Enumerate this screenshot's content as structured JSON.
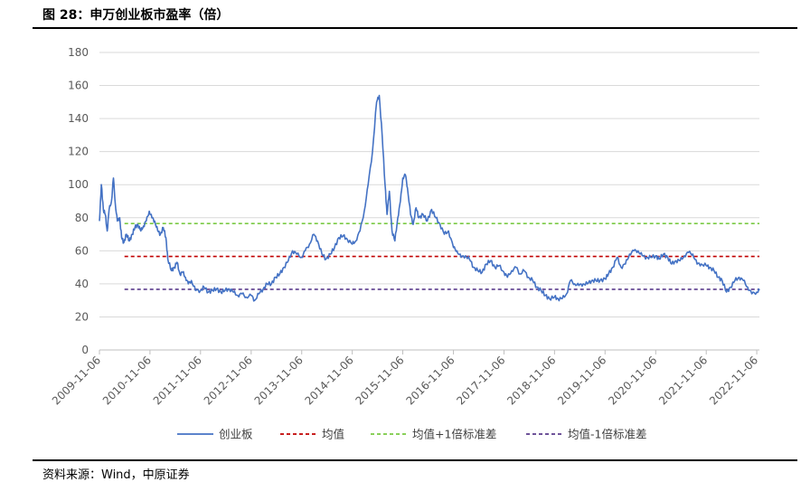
{
  "figure": {
    "title": "图 28：申万创业板市盈率（倍）",
    "source": "资料来源：Wind，中原证券"
  },
  "chart_data": {
    "type": "line",
    "title": "",
    "xlabel": "",
    "ylabel": "",
    "ylim": [
      0,
      180
    ],
    "y_ticks": [
      0,
      20,
      40,
      60,
      80,
      100,
      120,
      140,
      160,
      180
    ],
    "x_ticks": [
      "2009-11-06",
      "2010-11-06",
      "2011-11-06",
      "2012-11-06",
      "2013-11-06",
      "2014-11-06",
      "2015-11-06",
      "2016-11-06",
      "2017-11-06",
      "2018-11-06",
      "2019-11-06",
      "2020-11-06",
      "2021-11-06",
      "2022-11-06"
    ],
    "grid": "horizontal",
    "legend_position": "bottom",
    "series": [
      {
        "name": "创业板",
        "color": "#4472C4",
        "points": [
          [
            "2009-11-06",
            78
          ],
          [
            "2009-11-20",
            100
          ],
          [
            "2009-12-04",
            85
          ],
          [
            "2009-12-18",
            82
          ],
          [
            "2010-01-01",
            72
          ],
          [
            "2010-01-15",
            85
          ],
          [
            "2010-02-01",
            90
          ],
          [
            "2010-02-15",
            104
          ],
          [
            "2010-03-01",
            88
          ],
          [
            "2010-03-15",
            78
          ],
          [
            "2010-04-01",
            80
          ],
          [
            "2010-04-15",
            68
          ],
          [
            "2010-05-01",
            65
          ],
          [
            "2010-05-20",
            70
          ],
          [
            "2010-06-10",
            66
          ],
          [
            "2010-07-01",
            70
          ],
          [
            "2010-07-20",
            74
          ],
          [
            "2010-08-10",
            76
          ],
          [
            "2010-09-01",
            72
          ],
          [
            "2010-09-20",
            75
          ],
          [
            "2010-10-10",
            78
          ],
          [
            "2010-11-01",
            84
          ],
          [
            "2010-11-20",
            80
          ],
          [
            "2010-12-10",
            78
          ],
          [
            "2011-01-01",
            72
          ],
          [
            "2011-01-20",
            70
          ],
          [
            "2011-02-10",
            74
          ],
          [
            "2011-03-01",
            68
          ],
          [
            "2011-03-15",
            55
          ],
          [
            "2011-04-10",
            48
          ],
          [
            "2011-05-01",
            50
          ],
          [
            "2011-05-20",
            53
          ],
          [
            "2011-06-10",
            46
          ],
          [
            "2011-07-01",
            47
          ],
          [
            "2011-07-20",
            44
          ],
          [
            "2011-08-10",
            40
          ],
          [
            "2011-09-01",
            42
          ],
          [
            "2011-10-01",
            36
          ],
          [
            "2011-11-06",
            36
          ],
          [
            "2011-12-01",
            38
          ],
          [
            "2012-01-01",
            35
          ],
          [
            "2012-02-01",
            36
          ],
          [
            "2012-03-01",
            37
          ],
          [
            "2012-04-01",
            35
          ],
          [
            "2012-05-01",
            36
          ],
          [
            "2012-06-01",
            37
          ],
          [
            "2012-07-01",
            35
          ],
          [
            "2012-08-01",
            33
          ],
          [
            "2012-09-01",
            34
          ],
          [
            "2012-10-01",
            32
          ],
          [
            "2012-11-06",
            33
          ],
          [
            "2012-12-01",
            30
          ],
          [
            "2013-01-01",
            34
          ],
          [
            "2013-02-01",
            37
          ],
          [
            "2013-03-01",
            40
          ],
          [
            "2013-04-01",
            40
          ],
          [
            "2013-05-01",
            44
          ],
          [
            "2013-06-01",
            46
          ],
          [
            "2013-07-01",
            50
          ],
          [
            "2013-08-01",
            54
          ],
          [
            "2013-09-01",
            60
          ],
          [
            "2013-10-01",
            58
          ],
          [
            "2013-11-06",
            56
          ],
          [
            "2013-12-01",
            60
          ],
          [
            "2014-01-01",
            64
          ],
          [
            "2014-02-01",
            70
          ],
          [
            "2014-03-01",
            66
          ],
          [
            "2014-04-01",
            58
          ],
          [
            "2014-05-01",
            55
          ],
          [
            "2014-06-01",
            58
          ],
          [
            "2014-07-01",
            62
          ],
          [
            "2014-08-01",
            68
          ],
          [
            "2014-09-01",
            69
          ],
          [
            "2014-10-01",
            67
          ],
          [
            "2014-11-06",
            64
          ],
          [
            "2014-12-01",
            66
          ],
          [
            "2015-01-01",
            72
          ],
          [
            "2015-02-01",
            84
          ],
          [
            "2015-03-01",
            100
          ],
          [
            "2015-04-01",
            120
          ],
          [
            "2015-05-01",
            150
          ],
          [
            "2015-05-20",
            154
          ],
          [
            "2015-06-10",
            130
          ],
          [
            "2015-07-01",
            100
          ],
          [
            "2015-07-15",
            82
          ],
          [
            "2015-08-01",
            96
          ],
          [
            "2015-08-20",
            72
          ],
          [
            "2015-09-10",
            66
          ],
          [
            "2015-10-01",
            80
          ],
          [
            "2015-10-20",
            90
          ],
          [
            "2015-11-06",
            104
          ],
          [
            "2015-11-25",
            106
          ],
          [
            "2015-12-10",
            98
          ],
          [
            "2016-01-01",
            82
          ],
          [
            "2016-01-20",
            76
          ],
          [
            "2016-02-10",
            86
          ],
          [
            "2016-03-01",
            80
          ],
          [
            "2016-04-01",
            82
          ],
          [
            "2016-05-01",
            78
          ],
          [
            "2016-06-01",
            85
          ],
          [
            "2016-07-01",
            80
          ],
          [
            "2016-08-01",
            76
          ],
          [
            "2016-09-01",
            70
          ],
          [
            "2016-10-01",
            72
          ],
          [
            "2016-11-06",
            62
          ],
          [
            "2016-12-01",
            60
          ],
          [
            "2017-01-01",
            56
          ],
          [
            "2017-02-01",
            57
          ],
          [
            "2017-03-01",
            55
          ],
          [
            "2017-04-01",
            50
          ],
          [
            "2017-05-01",
            48
          ],
          [
            "2017-06-01",
            47
          ],
          [
            "2017-07-01",
            52
          ],
          [
            "2017-08-01",
            54
          ],
          [
            "2017-09-01",
            50
          ],
          [
            "2017-10-01",
            51
          ],
          [
            "2017-11-06",
            47
          ],
          [
            "2017-12-01",
            44
          ],
          [
            "2018-01-01",
            48
          ],
          [
            "2018-02-01",
            50
          ],
          [
            "2018-03-01",
            46
          ],
          [
            "2018-04-01",
            48
          ],
          [
            "2018-05-01",
            44
          ],
          [
            "2018-06-01",
            42
          ],
          [
            "2018-07-01",
            38
          ],
          [
            "2018-08-01",
            36
          ],
          [
            "2018-09-01",
            33
          ],
          [
            "2018-10-01",
            31
          ],
          [
            "2018-11-06",
            32
          ],
          [
            "2018-12-01",
            31
          ],
          [
            "2019-01-01",
            31
          ],
          [
            "2019-02-01",
            34
          ],
          [
            "2019-03-01",
            42
          ],
          [
            "2019-04-01",
            40
          ],
          [
            "2019-05-01",
            39
          ],
          [
            "2019-06-01",
            40
          ],
          [
            "2019-07-01",
            40
          ],
          [
            "2019-08-01",
            42
          ],
          [
            "2019-09-01",
            42
          ],
          [
            "2019-10-01",
            42
          ],
          [
            "2019-11-06",
            43
          ],
          [
            "2019-12-01",
            46
          ],
          [
            "2020-01-01",
            50
          ],
          [
            "2020-02-01",
            56
          ],
          [
            "2020-03-01",
            50
          ],
          [
            "2020-04-01",
            52
          ],
          [
            "2020-05-01",
            58
          ],
          [
            "2020-06-01",
            60
          ],
          [
            "2020-07-01",
            60
          ],
          [
            "2020-08-01",
            57
          ],
          [
            "2020-09-01",
            56
          ],
          [
            "2020-10-01",
            56
          ],
          [
            "2020-11-06",
            57
          ],
          [
            "2020-12-01",
            55
          ],
          [
            "2021-01-01",
            58
          ],
          [
            "2021-02-01",
            56
          ],
          [
            "2021-03-01",
            52
          ],
          [
            "2021-04-01",
            54
          ],
          [
            "2021-05-01",
            54
          ],
          [
            "2021-06-01",
            57
          ],
          [
            "2021-07-01",
            59
          ],
          [
            "2021-08-01",
            58
          ],
          [
            "2021-09-01",
            52
          ],
          [
            "2021-10-01",
            52
          ],
          [
            "2021-11-06",
            51
          ],
          [
            "2021-12-01",
            50
          ],
          [
            "2022-01-01",
            48
          ],
          [
            "2022-02-01",
            44
          ],
          [
            "2022-03-01",
            42
          ],
          [
            "2022-04-01",
            35
          ],
          [
            "2022-05-01",
            38
          ],
          [
            "2022-06-01",
            42
          ],
          [
            "2022-07-01",
            44
          ],
          [
            "2022-08-01",
            42
          ],
          [
            "2022-09-01",
            38
          ],
          [
            "2022-10-01",
            34
          ],
          [
            "2022-11-06",
            35
          ],
          [
            "2022-11-25",
            36
          ]
        ]
      },
      {
        "name": "均值",
        "color": "#C00000",
        "value": 56.6,
        "start": "2010-05-06",
        "end": "2022-11-25"
      },
      {
        "name": "均值+1倍标准差",
        "color": "#7AC943",
        "value": 76.5,
        "start": "2010-05-06",
        "end": "2022-11-25"
      },
      {
        "name": "均值-1倍标准差",
        "color": "#5B3C8C",
        "value": 36.7,
        "start": "2010-05-06",
        "end": "2022-11-25"
      }
    ]
  }
}
